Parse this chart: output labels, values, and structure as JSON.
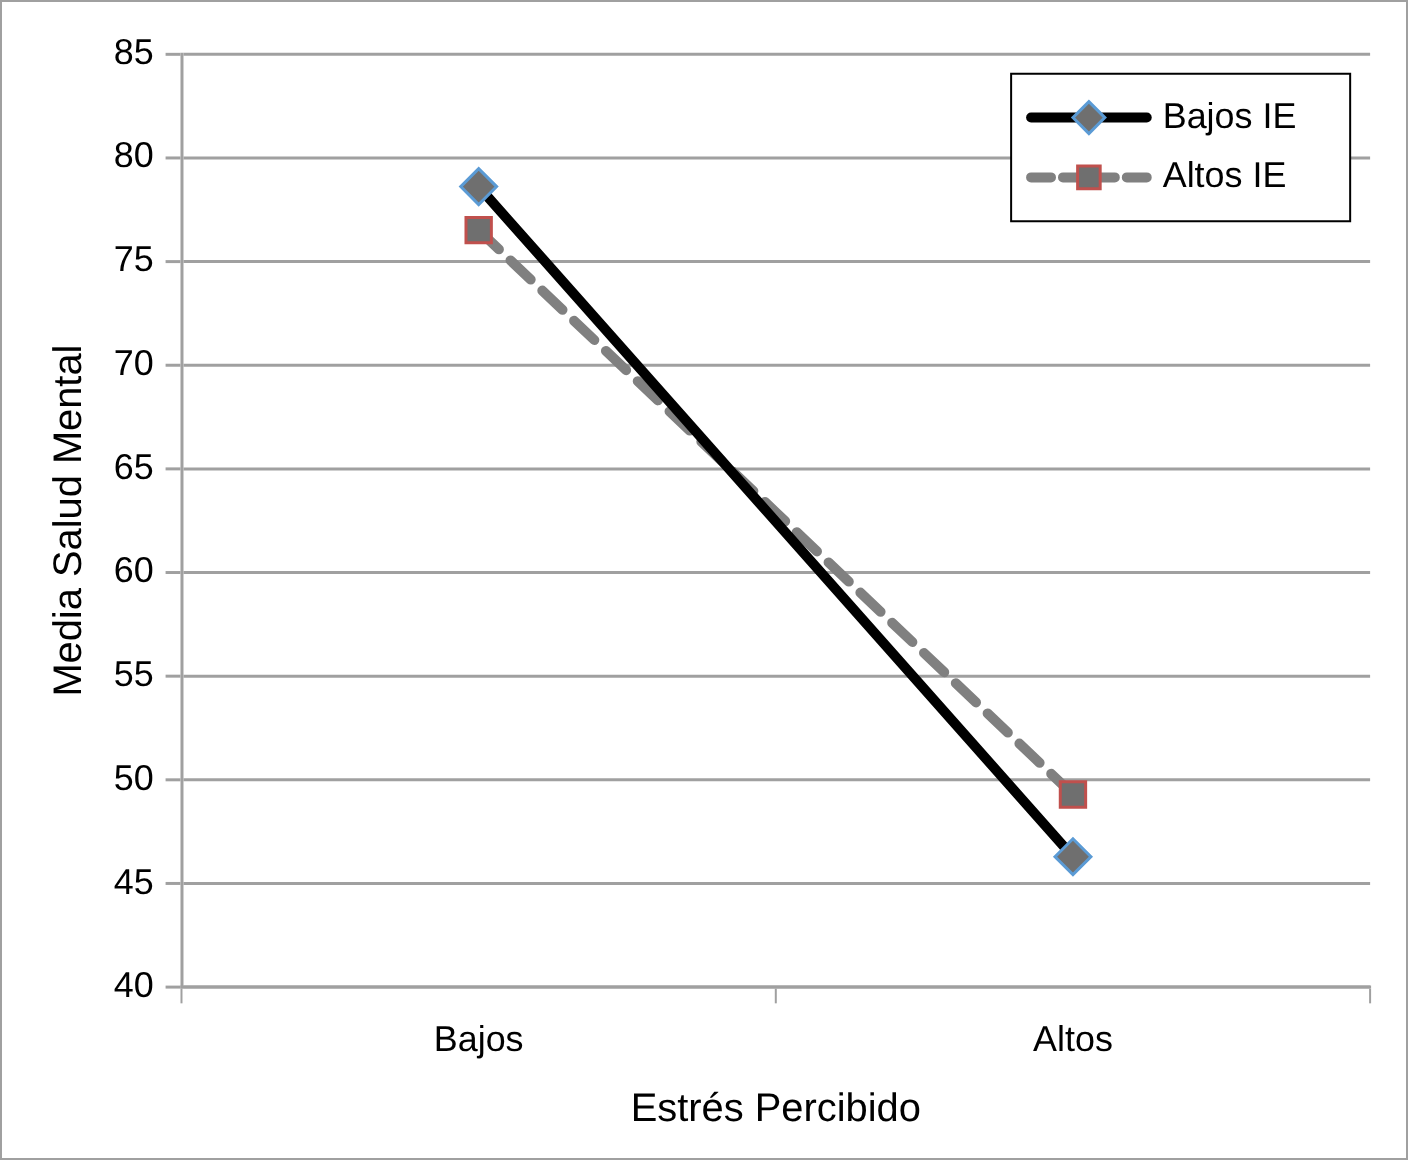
{
  "chart_data": {
    "type": "line",
    "xlabel": "Estrés Percibido",
    "ylabel": "Media Salud Mental",
    "categories": [
      "Bajos",
      "Altos"
    ],
    "series": [
      {
        "name": "Bajos IE",
        "color": "#000000",
        "values": [
          78.6,
          46.3
        ],
        "marker": "diamond",
        "line_style": "solid"
      },
      {
        "name": "Altos IE",
        "color": "#808080",
        "values": [
          76.5,
          49.3
        ],
        "marker": "square",
        "line_style": "dashed"
      }
    ],
    "ylim": [
      40,
      85
    ],
    "yticks": [
      40,
      45,
      50,
      55,
      60,
      65,
      70,
      75,
      80,
      85
    ],
    "grid": "y",
    "legend": "top right"
  }
}
